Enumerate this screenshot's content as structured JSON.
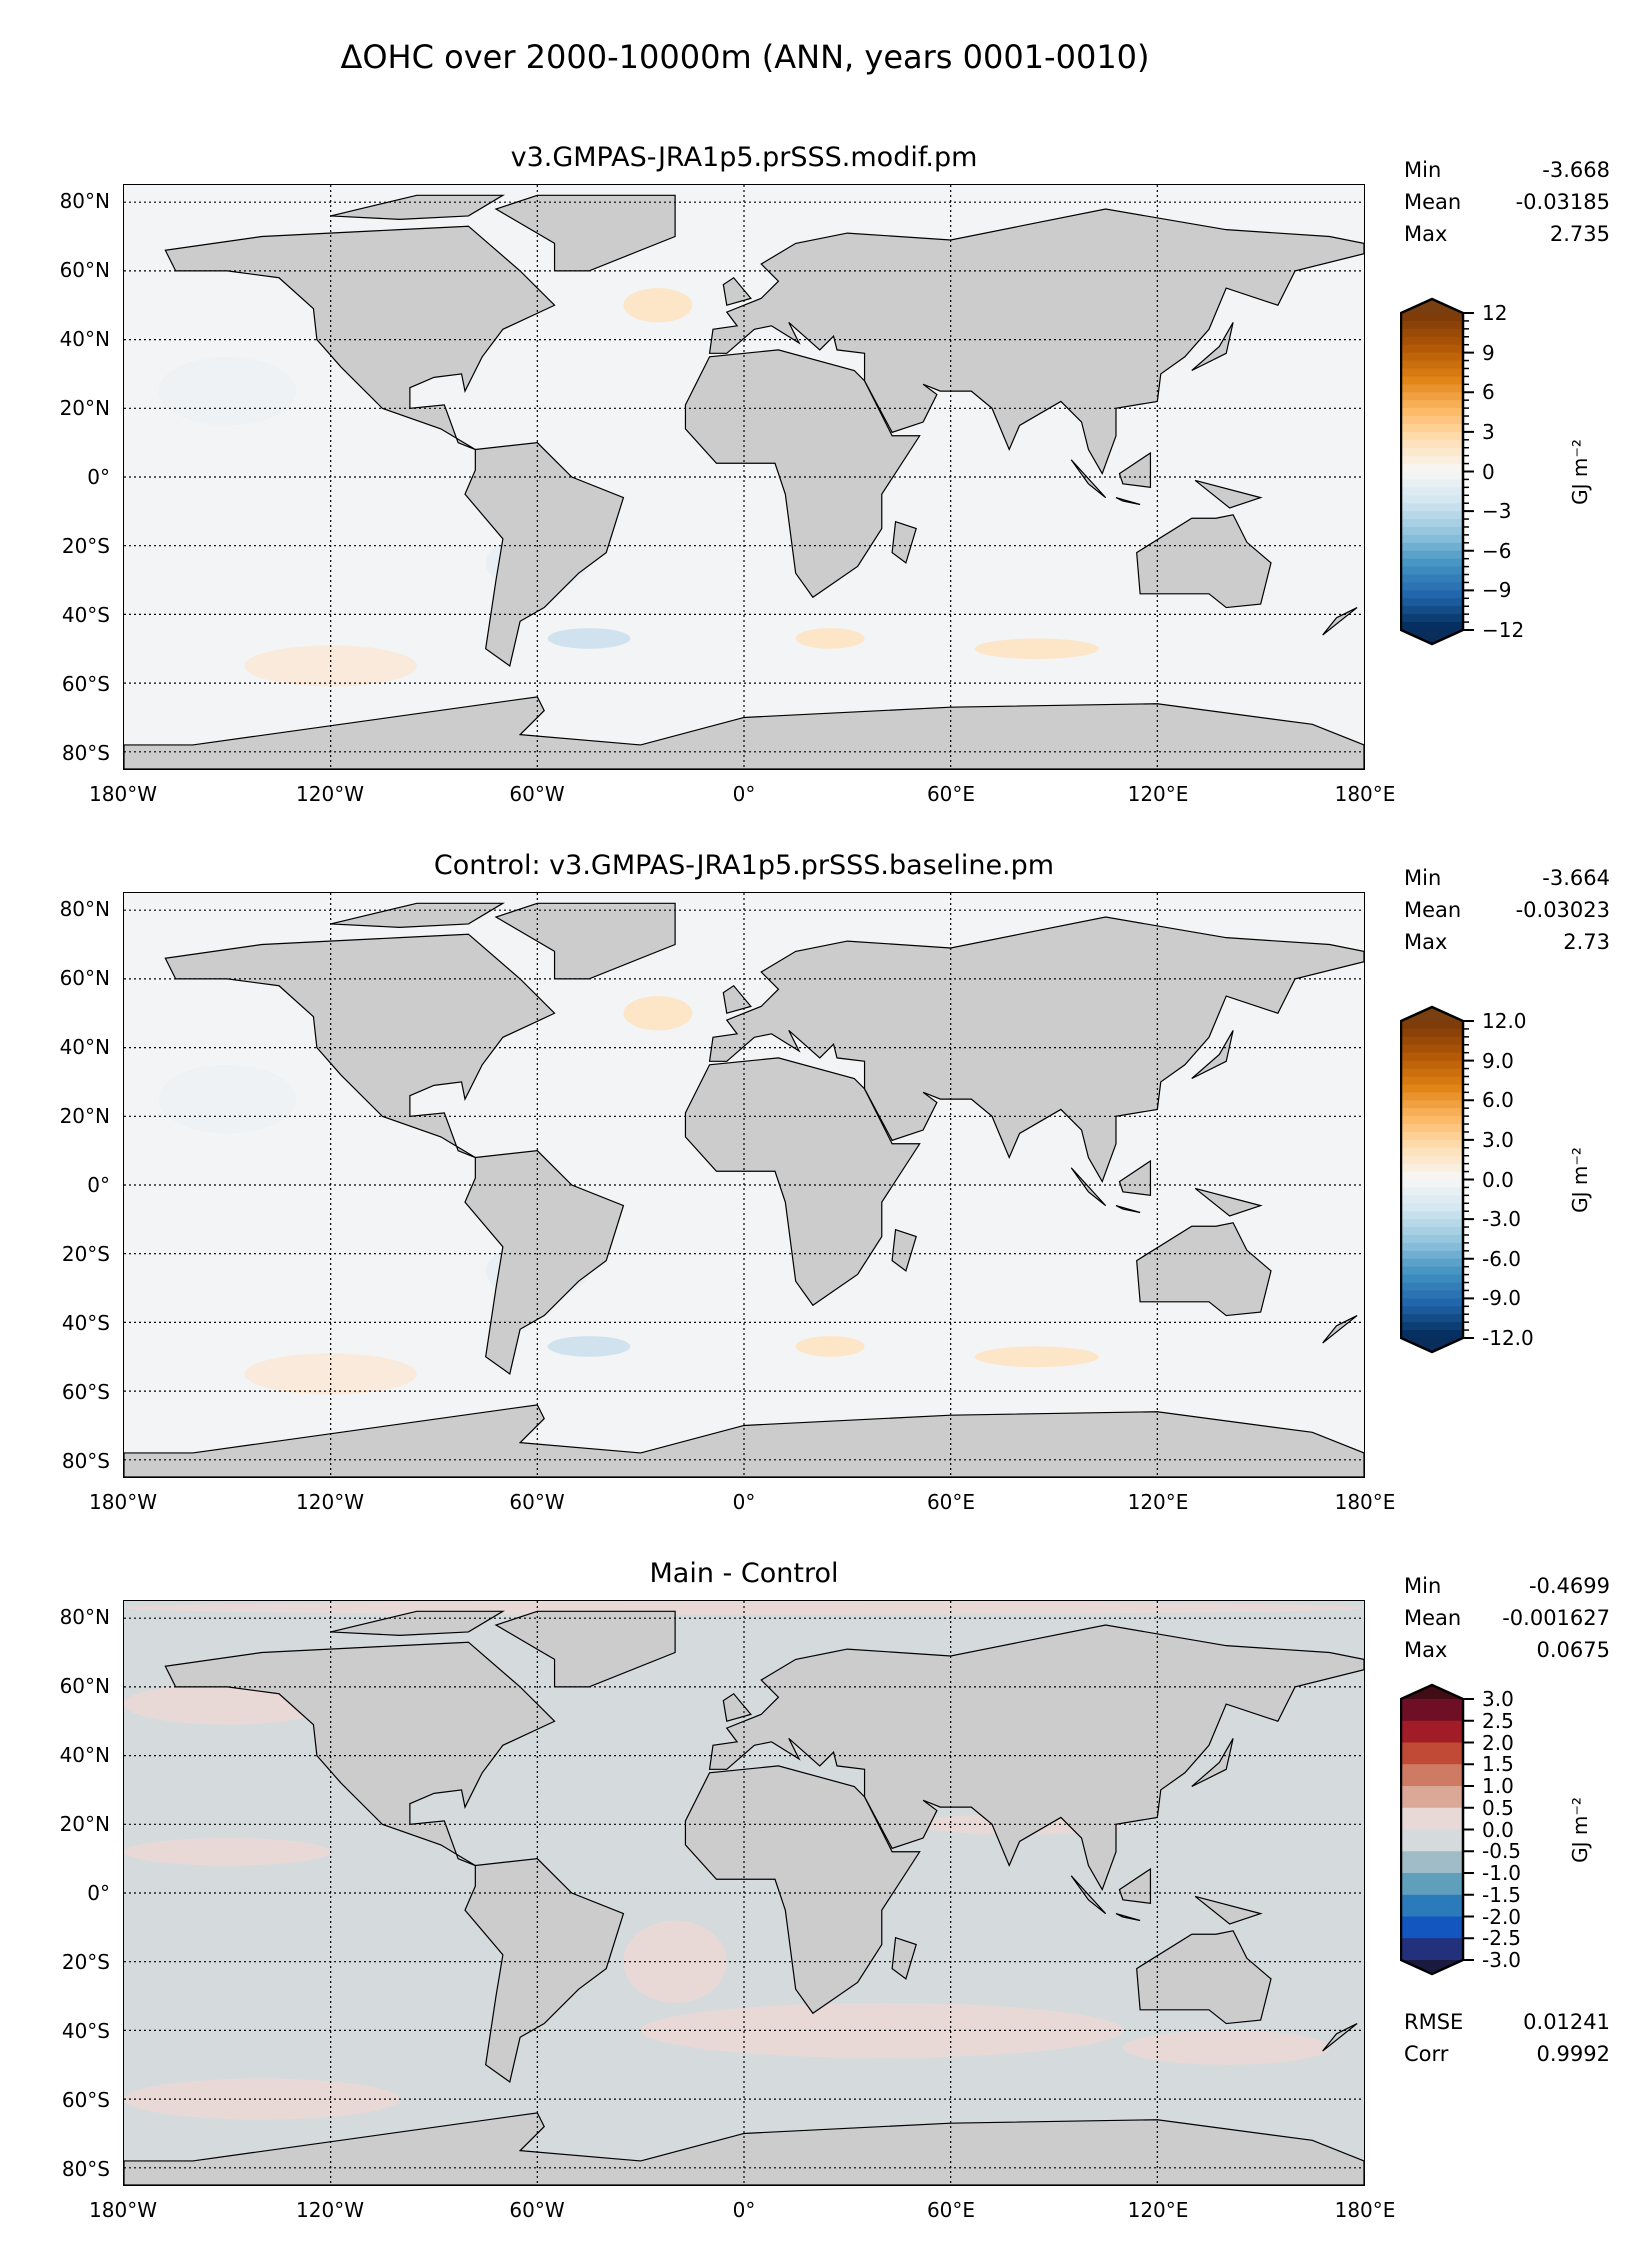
{
  "title": "ΔOHC over 2000-10000m (ANN, years 0001-0010)",
  "chart_data": {
    "type": "heatmap",
    "lat_ticks": [
      "80°N",
      "60°N",
      "40°N",
      "20°N",
      "0°",
      "20°S",
      "40°S",
      "60°S",
      "80°S"
    ],
    "lon_ticks": [
      "180°W",
      "120°W",
      "60°W",
      "0°",
      "60°E",
      "120°E",
      "180°E"
    ],
    "panels": [
      {
        "title": "v3.GMPAS-JRA1p5.prSSS.modif.pm",
        "stats": [
          {
            "label": "Min",
            "value": "-3.668"
          },
          {
            "label": "Mean",
            "value": "-0.03185"
          },
          {
            "label": "Max",
            "value": "2.735"
          }
        ],
        "colorbar": {
          "label": "GJ m⁻²",
          "ticks": [
            "12",
            "9",
            "6",
            "3",
            "0",
            "−3",
            "−6",
            "−9",
            "−12"
          ],
          "range": [
            -12,
            12
          ],
          "levels": 40,
          "colors": [
            "#7f3b08",
            "#b35806",
            "#e08214",
            "#fdb863",
            "#fee0b6",
            "#f7f7f7",
            "#d1e5f0",
            "#92c5de",
            "#4393c3",
            "#2166ac",
            "#053061"
          ],
          "ext_top": "#7a3f10",
          "ext_bottom": "#0a2d5c"
        },
        "ocean_color": "#f3f4f5"
      },
      {
        "title": "Control: v3.GMPAS-JRA1p5.prSSS.baseline.pm",
        "stats": [
          {
            "label": "Min",
            "value": "-3.664"
          },
          {
            "label": "Mean",
            "value": "-0.03023"
          },
          {
            "label": "Max",
            "value": "2.73"
          }
        ],
        "colorbar": {
          "label": "GJ m⁻²",
          "ticks": [
            "12.0",
            "9.0",
            "6.0",
            "3.0",
            "0.0",
            "-3.0",
            "-6.0",
            "-9.0",
            "-12.0"
          ],
          "range": [
            -12,
            12
          ],
          "levels": 40,
          "colors": [
            "#7f3b08",
            "#b35806",
            "#e08214",
            "#fdb863",
            "#fee0b6",
            "#f7f7f7",
            "#d1e5f0",
            "#92c5de",
            "#4393c3",
            "#2166ac",
            "#053061"
          ],
          "ext_top": "#7a3f10",
          "ext_bottom": "#0a2d5c"
        },
        "ocean_color": "#f3f4f5"
      },
      {
        "title": "Main - Control",
        "stats": [
          {
            "label": "Min",
            "value": "-0.4699"
          },
          {
            "label": "Mean",
            "value": "-0.001627"
          },
          {
            "label": "Max",
            "value": "0.0675"
          }
        ],
        "extra_stats": [
          {
            "label": "RMSE",
            "value": "0.01241"
          },
          {
            "label": "Corr",
            "value": "0.9992"
          }
        ],
        "colorbar": {
          "label": "GJ m⁻²",
          "ticks": [
            "3.0",
            "2.5",
            "2.0",
            "1.5",
            "1.0",
            "0.5",
            "0.0",
            "-0.5",
            "-1.0",
            "-1.5",
            "-2.0",
            "-2.5",
            "-3.0"
          ],
          "range": [
            -3,
            3
          ],
          "levels": 12,
          "band_colors": [
            "#6e0f26",
            "#a11c27",
            "#c04a35",
            "#cf7b64",
            "#dba898",
            "#e8d9d6",
            "#d5dadd",
            "#9fbcc7",
            "#5f9fbc",
            "#2b7bbb",
            "#1356bf",
            "#23317c"
          ],
          "ext_top": "#420c17",
          "ext_bottom": "#1a1a40"
        },
        "ocean_color": "#d5dadd"
      }
    ]
  }
}
